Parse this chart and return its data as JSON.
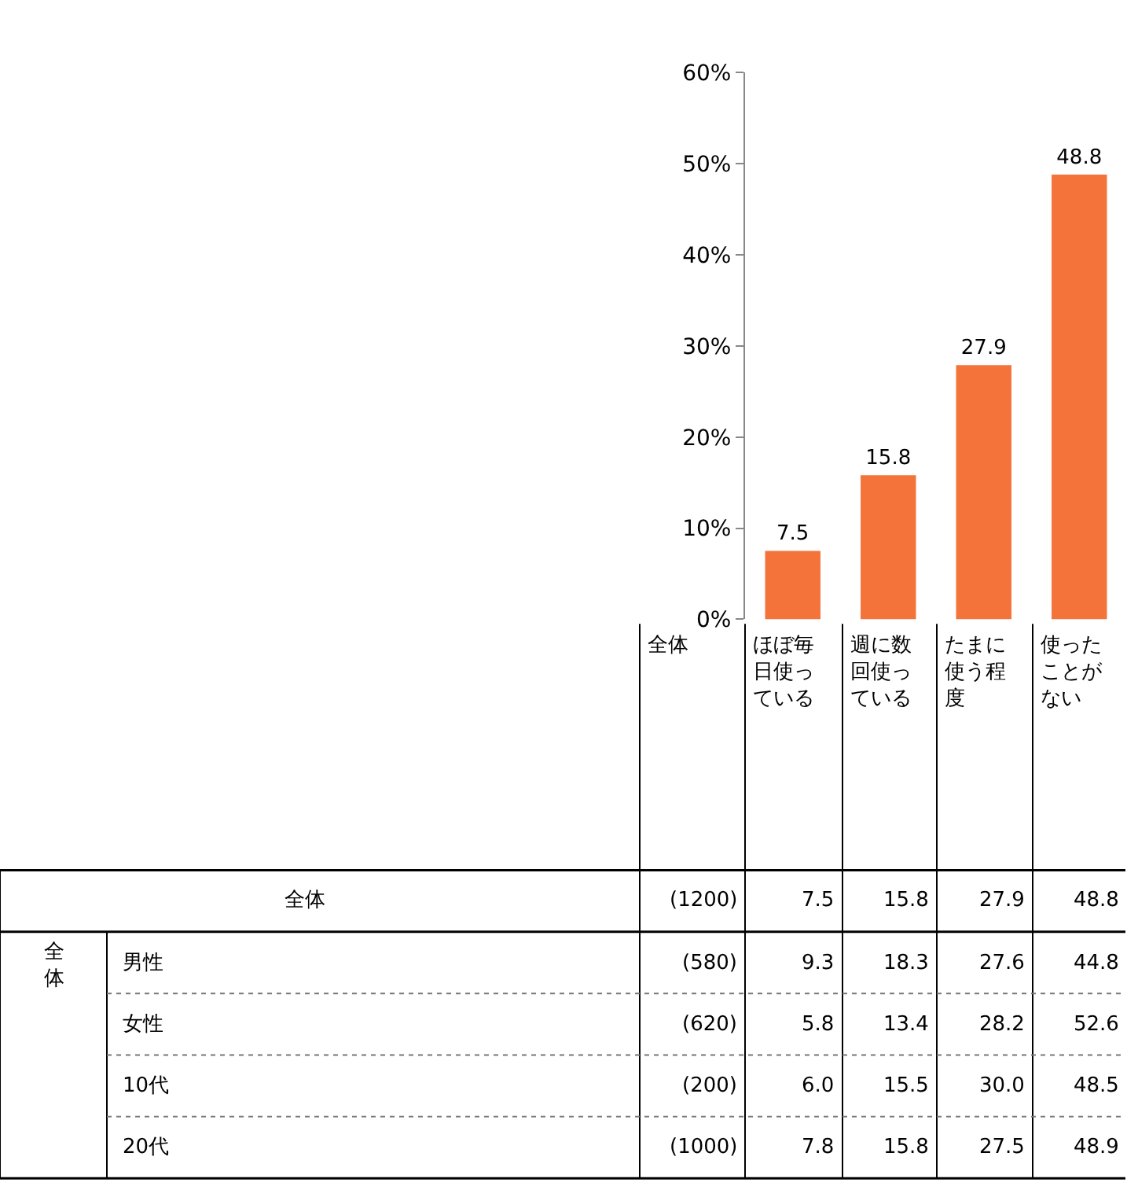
{
  "chart_data": [
    {
      "type": "bar",
      "categories": [
        "ほぼ毎日使っている",
        "週に数回使っている",
        "たまに使う程度",
        "使ったことがない"
      ],
      "values": [
        7.5,
        15.8,
        27.9,
        48.8
      ],
      "color": "#f4733a",
      "ylim": [
        0,
        60
      ],
      "yticks": [
        {
          "value": 0,
          "label": "0%"
        },
        {
          "value": 10,
          "label": "10%"
        },
        {
          "value": 20,
          "label": "20%"
        },
        {
          "value": 30,
          "label": "30%"
        },
        {
          "value": 40,
          "label": "40%"
        },
        {
          "value": 50,
          "label": "50%"
        },
        {
          "value": 60,
          "label": "60%"
        }
      ],
      "data_labels": true
    },
    {
      "type": "other",
      "categories": [
        "全体",
        null,
        null,
        null,
        null
      ],
      "y_categories": [
        "全体",
        "男性",
        "女性",
        "10代",
        "20代"
      ],
      "cell_labels": [
        [
          "(1200)",
          "7.5",
          "15.8",
          "27.9",
          "48.8"
        ],
        [
          "(580)",
          "9.3",
          "18.3",
          "27.6",
          "44.8"
        ],
        [
          "(620)",
          "5.8",
          "13.4",
          "28.2",
          "52.6"
        ],
        [
          "(200)",
          "6.0",
          "15.5",
          "30.0",
          "48.5"
        ],
        [
          "(1000)",
          "7.8",
          "15.8",
          "27.5",
          "48.9"
        ]
      ],
      "annotations": [
        "全体"
      ]
    }
  ]
}
